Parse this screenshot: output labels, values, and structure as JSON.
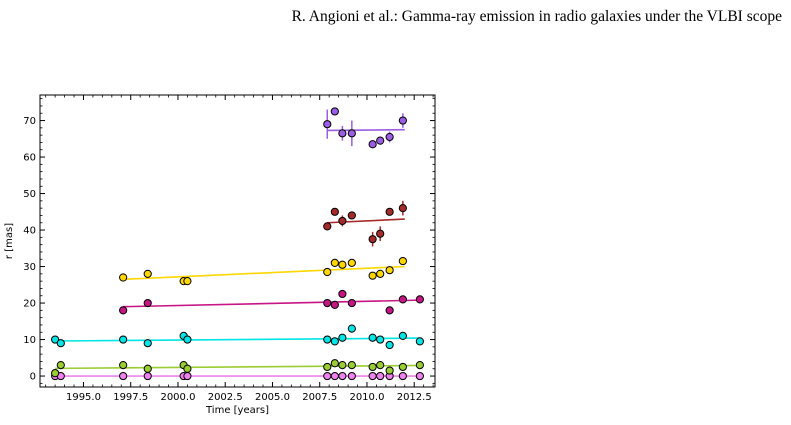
{
  "page": {
    "running_head": "R. Angioni  et al.: Gamma-ray emission in radio galaxies under the VLBI scope"
  },
  "chart_data": {
    "type": "scatter",
    "title": "",
    "xlabel": "Time [years]",
    "ylabel": "r [mas]",
    "xlim": [
      1992.7,
      2013.6
    ],
    "ylim": [
      -3,
      77
    ],
    "xticks": [
      1995.0,
      1997.5,
      2000.0,
      2002.5,
      2005.0,
      2007.5,
      2010.0,
      2012.5
    ],
    "xtick_labels": [
      "1995.0",
      "1997.5",
      "2000.0",
      "2002.5",
      "2005.0",
      "2007.5",
      "2010.0",
      "2012.5"
    ],
    "yticks": [
      0,
      10,
      20,
      30,
      40,
      50,
      60,
      70
    ],
    "ytick_labels": [
      "0",
      "10",
      "20",
      "30",
      "40",
      "50",
      "60",
      "70"
    ],
    "grid": false,
    "legend": "none",
    "series": [
      {
        "color": "#ee82ee",
        "fit": {
          "x": [
            1993.5,
            2012.8
          ],
          "y": [
            0.0,
            0.0
          ]
        },
        "points": [
          {
            "x": 1993.5,
            "y": 0.0
          },
          {
            "x": 1993.8,
            "y": 0.0
          },
          {
            "x": 1997.1,
            "y": 0.0
          },
          {
            "x": 1998.4,
            "y": 0.0
          },
          {
            "x": 2000.3,
            "y": 0.0
          },
          {
            "x": 2000.5,
            "y": 0.0
          },
          {
            "x": 2007.9,
            "y": 0.0
          },
          {
            "x": 2008.3,
            "y": 0.0
          },
          {
            "x": 2008.7,
            "y": 0.0
          },
          {
            "x": 2009.2,
            "y": 0.0
          },
          {
            "x": 2010.3,
            "y": 0.0
          },
          {
            "x": 2010.7,
            "y": 0.0
          },
          {
            "x": 2011.2,
            "y": 0.0
          },
          {
            "x": 2011.9,
            "y": 0.0
          },
          {
            "x": 2012.8,
            "y": 0.0
          }
        ]
      },
      {
        "color": "#9acd32",
        "fit": {
          "x": [
            1993.5,
            2012.8
          ],
          "y": [
            2.1,
            2.9
          ]
        },
        "points": [
          {
            "x": 1993.5,
            "y": 0.8
          },
          {
            "x": 1993.8,
            "y": 3.0
          },
          {
            "x": 1997.1,
            "y": 3.0
          },
          {
            "x": 1998.4,
            "y": 2.0
          },
          {
            "x": 2000.3,
            "y": 3.0
          },
          {
            "x": 2000.5,
            "y": 2.0
          },
          {
            "x": 2007.9,
            "y": 2.5
          },
          {
            "x": 2008.3,
            "y": 3.5
          },
          {
            "x": 2008.7,
            "y": 3.0
          },
          {
            "x": 2009.2,
            "y": 3.0
          },
          {
            "x": 2010.3,
            "y": 2.5
          },
          {
            "x": 2010.7,
            "y": 3.0
          },
          {
            "x": 2011.2,
            "y": 1.5
          },
          {
            "x": 2011.9,
            "y": 2.5
          },
          {
            "x": 2012.8,
            "y": 3.0
          }
        ]
      },
      {
        "color": "#00e5e5",
        "fit": {
          "x": [
            1993.5,
            2012.8
          ],
          "y": [
            9.6,
            10.4
          ]
        },
        "points": [
          {
            "x": 1993.5,
            "y": 10.0
          },
          {
            "x": 1993.8,
            "y": 9.0
          },
          {
            "x": 1997.1,
            "y": 10.0
          },
          {
            "x": 1998.4,
            "y": 9.0
          },
          {
            "x": 2000.3,
            "y": 11.0
          },
          {
            "x": 2000.5,
            "y": 10.0
          },
          {
            "x": 2007.9,
            "y": 10.0
          },
          {
            "x": 2008.3,
            "y": 9.5
          },
          {
            "x": 2008.7,
            "y": 10.5
          },
          {
            "x": 2009.2,
            "y": 13.0
          },
          {
            "x": 2010.3,
            "y": 10.5
          },
          {
            "x": 2010.7,
            "y": 10.0
          },
          {
            "x": 2011.2,
            "y": 8.5
          },
          {
            "x": 2011.9,
            "y": 11.0
          },
          {
            "x": 2012.8,
            "y": 9.5
          }
        ]
      },
      {
        "color": "#c71585",
        "fit": {
          "x": [
            1997.1,
            2012.8
          ],
          "y": [
            19.0,
            20.8
          ]
        },
        "points": [
          {
            "x": 1997.1,
            "y": 18.0
          },
          {
            "x": 1998.4,
            "y": 20.0
          },
          {
            "x": 2007.9,
            "y": 20.0
          },
          {
            "x": 2008.3,
            "y": 19.5
          },
          {
            "x": 2008.7,
            "y": 22.5
          },
          {
            "x": 2009.2,
            "y": 20.0
          },
          {
            "x": 2011.2,
            "y": 18.0
          },
          {
            "x": 2011.9,
            "y": 21.0
          },
          {
            "x": 2012.8,
            "y": 21.0
          }
        ]
      },
      {
        "color": "#ffd700",
        "fit": {
          "x": [
            1997.1,
            2012.0
          ],
          "y": [
            26.5,
            30.0
          ]
        },
        "points": [
          {
            "x": 1997.1,
            "y": 27.0
          },
          {
            "x": 1998.4,
            "y": 28.0
          },
          {
            "x": 2000.3,
            "y": 26.0
          },
          {
            "x": 2000.5,
            "y": 26.0
          },
          {
            "x": 2007.9,
            "y": 28.5
          },
          {
            "x": 2008.3,
            "y": 31.0
          },
          {
            "x": 2008.7,
            "y": 30.5
          },
          {
            "x": 2009.2,
            "y": 31.0
          },
          {
            "x": 2010.3,
            "y": 27.5
          },
          {
            "x": 2010.7,
            "y": 28.0
          },
          {
            "x": 2011.2,
            "y": 29.0
          },
          {
            "x": 2011.9,
            "y": 31.5
          }
        ]
      },
      {
        "color": "#a52a2a",
        "fit": {
          "x": [
            2007.9,
            2012.0
          ],
          "y": [
            42.0,
            43.0
          ]
        },
        "points": [
          {
            "x": 2007.9,
            "y": 41.0
          },
          {
            "x": 2008.3,
            "y": 45.0
          },
          {
            "x": 2008.7,
            "y": 42.5,
            "err": 1.5
          },
          {
            "x": 2009.2,
            "y": 44.0,
            "err": 1.0
          },
          {
            "x": 2010.3,
            "y": 37.5,
            "err": 2.0
          },
          {
            "x": 2010.7,
            "y": 39.0,
            "err": 2.0
          },
          {
            "x": 2011.2,
            "y": 45.0,
            "err": 1.0
          },
          {
            "x": 2011.9,
            "y": 46.0,
            "err": 2.0
          }
        ]
      },
      {
        "color": "#9b5de5",
        "fit": {
          "x": [
            2007.9,
            2012.0
          ],
          "y": [
            67.3,
            67.5
          ]
        },
        "points": [
          {
            "x": 2007.9,
            "y": 69.0,
            "err": 4.0
          },
          {
            "x": 2008.3,
            "y": 72.5
          },
          {
            "x": 2008.7,
            "y": 66.5,
            "err": 2.0
          },
          {
            "x": 2009.2,
            "y": 66.5,
            "err": 3.5
          },
          {
            "x": 2010.3,
            "y": 63.5
          },
          {
            "x": 2010.7,
            "y": 64.5
          },
          {
            "x": 2011.2,
            "y": 65.5,
            "err": 1.5
          },
          {
            "x": 2011.9,
            "y": 70.0,
            "err": 2.0
          }
        ]
      }
    ]
  }
}
